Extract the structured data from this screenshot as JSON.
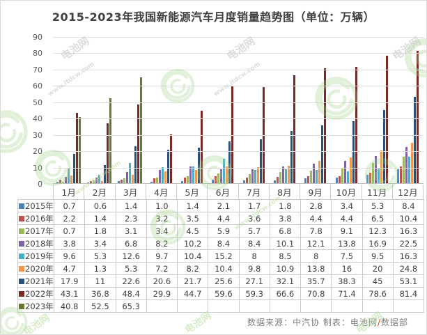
{
  "title": "2015-2023年我国新能源汽车月度销量趋势图（单位：万辆）",
  "footer": {
    "source": "数据来源：中汽协",
    "made_by": "  制表：电池网",
    "slash": "/",
    "dept": "数据部"
  },
  "watermark": {
    "brand": "电池网",
    "url": "www.itdcw.com",
    "logo_color": "#9fd183",
    "text_color": "#c3c3c3",
    "green_text_color": "#b7dc9c"
  },
  "colors": {
    "grid": "#e0e0e0",
    "axis": "#bfbfbf",
    "table_border": "#cbcbcb",
    "text": "#404040",
    "title": "#3f3f3f",
    "footer": "#7f7f7f"
  },
  "chart_data": {
    "type": "bar",
    "title": "2015-2023年我国新能源汽车月度销量趋势图（单位：万辆）",
    "xlabel": "",
    "ylabel": "",
    "ylim": [
      0,
      90
    ],
    "yticks": [
      0,
      10,
      20,
      30,
      40,
      50,
      60,
      70,
      80,
      90
    ],
    "grid": true,
    "legend_position": "table-left",
    "categories": [
      "1月",
      "2月",
      "3月",
      "4月",
      "5月",
      "6月",
      "7月",
      "8月",
      "9月",
      "10月",
      "11月",
      "12月"
    ],
    "series": [
      {
        "name": "2015年",
        "color": "#4f81bd",
        "values": [
          "0.7",
          "0.6",
          "1.4",
          "1.0",
          "1.4",
          "2.1",
          "1.7",
          "1.8",
          "2.8",
          "3.4",
          "5.3",
          "8.4"
        ]
      },
      {
        "name": "2016年",
        "color": "#c0504d",
        "values": [
          "2.2",
          "1.4",
          "2.3",
          "3.2",
          "3.5",
          "4.4",
          "3.6",
          "3.8",
          "4.4",
          "4.4",
          "6.5",
          "10.4"
        ]
      },
      {
        "name": "2017年",
        "color": "#9bbb59",
        "values": [
          "0.7",
          "1.8",
          "3.1",
          "3.4",
          "4.5",
          "5.9",
          "5.7",
          "6.8",
          "7.8",
          "9.1",
          "12.3",
          "16.3"
        ]
      },
      {
        "name": "2018年",
        "color": "#8064a2",
        "values": [
          "3.8",
          "3.4",
          "6.8",
          "8.2",
          "10.2",
          "8.4",
          "8.4",
          "10.1",
          "12.1",
          "13.8",
          "16.9",
          "22.5"
        ]
      },
      {
        "name": "2019年",
        "color": "#4bacc6",
        "values": [
          "9.6",
          "5.3",
          "12.6",
          "9.7",
          "10.4",
          "15.2",
          "8",
          "8.5",
          "8",
          "7.5",
          "9.5",
          "16.3"
        ]
      },
      {
        "name": "2020年",
        "color": "#f79646",
        "values": [
          "4.7",
          "1.3",
          "5.3",
          "7.2",
          "8.2",
          "10.4",
          "9.8",
          "10.9",
          "13.8",
          "16",
          "20",
          "24.8"
        ]
      },
      {
        "name": "2021年",
        "color": "#2a5277",
        "values": [
          "17.9",
          "11",
          "22.6",
          "20.6",
          "21.7",
          "25.6",
          "27.1",
          "32.1",
          "35.7",
          "38.3",
          "45",
          "53.1"
        ]
      },
      {
        "name": "2022年",
        "color": "#7b2927",
        "values": [
          "43.1",
          "36.8",
          "48.4",
          "29.9",
          "44.7",
          "59.6",
          "59.3",
          "66.6",
          "70.8",
          "71.4",
          "78.6",
          "81.4"
        ]
      },
      {
        "name": "2023年",
        "color": "#66772f",
        "values": [
          "40.8",
          "52.5",
          "65.3",
          "",
          "",
          "",
          "",
          "",
          "",
          "",
          "",
          ""
        ]
      }
    ]
  }
}
